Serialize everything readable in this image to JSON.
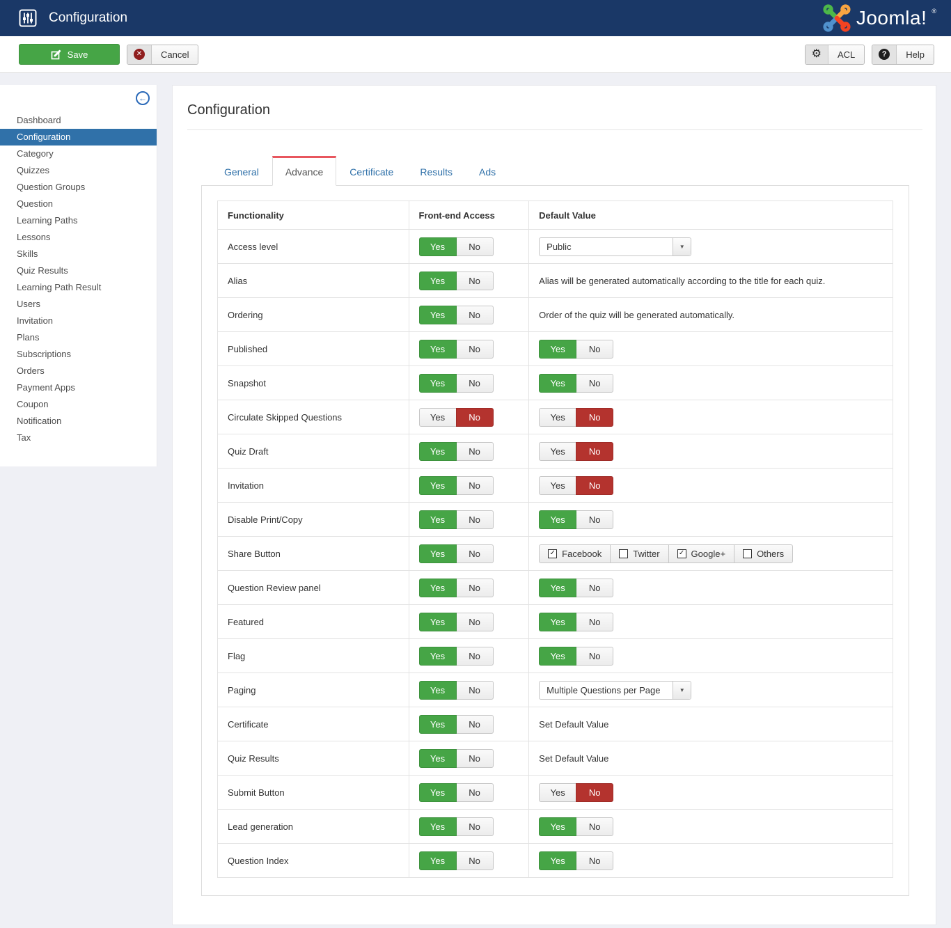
{
  "labels": {
    "yes": "Yes",
    "no": "No"
  },
  "header": {
    "title": "Configuration",
    "logo_text": "Joomla!",
    "logo_reg": "®"
  },
  "toolbar": {
    "save_label": "Save",
    "cancel_label": "Cancel",
    "acl_label": "ACL",
    "help_label": "Help"
  },
  "sidebar": {
    "items": [
      {
        "label": "Dashboard",
        "active": false
      },
      {
        "label": "Configuration",
        "active": true
      },
      {
        "label": "Category",
        "active": false
      },
      {
        "label": "Quizzes",
        "active": false
      },
      {
        "label": "Question Groups",
        "active": false
      },
      {
        "label": "Question",
        "active": false
      },
      {
        "label": "Learning Paths",
        "active": false
      },
      {
        "label": "Lessons",
        "active": false
      },
      {
        "label": "Skills",
        "active": false
      },
      {
        "label": "Quiz Results",
        "active": false
      },
      {
        "label": "Learning Path Result",
        "active": false
      },
      {
        "label": "Users",
        "active": false
      },
      {
        "label": "Invitation",
        "active": false
      },
      {
        "label": "Plans",
        "active": false
      },
      {
        "label": "Subscriptions",
        "active": false
      },
      {
        "label": "Orders",
        "active": false
      },
      {
        "label": "Payment Apps",
        "active": false
      },
      {
        "label": "Coupon",
        "active": false
      },
      {
        "label": "Notification",
        "active": false
      },
      {
        "label": "Tax",
        "active": false
      }
    ]
  },
  "main": {
    "title": "Configuration",
    "tabs": [
      {
        "label": "General",
        "active": false
      },
      {
        "label": "Advance",
        "active": true
      },
      {
        "label": "Certificate",
        "active": false
      },
      {
        "label": "Results",
        "active": false
      },
      {
        "label": "Ads",
        "active": false
      }
    ],
    "table": {
      "headers": [
        "Functionality",
        "Front-end Access",
        "Default Value"
      ],
      "rows": [
        {
          "functionality": "Access level",
          "frontend_access": "yes",
          "default": {
            "type": "select",
            "value": "Public"
          }
        },
        {
          "functionality": "Alias",
          "frontend_access": "yes",
          "default": {
            "type": "text",
            "value": "Alias will be generated automatically according to the title for each quiz."
          }
        },
        {
          "functionality": "Ordering",
          "frontend_access": "yes",
          "default": {
            "type": "text",
            "value": "Order of the quiz will be generated automatically."
          }
        },
        {
          "functionality": "Published",
          "frontend_access": "yes",
          "default": {
            "type": "toggle",
            "value": "yes"
          }
        },
        {
          "functionality": "Snapshot",
          "frontend_access": "yes",
          "default": {
            "type": "toggle",
            "value": "yes"
          }
        },
        {
          "functionality": "Circulate Skipped Questions",
          "frontend_access": "no",
          "default": {
            "type": "toggle",
            "value": "no"
          }
        },
        {
          "functionality": "Quiz Draft",
          "frontend_access": "yes",
          "default": {
            "type": "toggle",
            "value": "no"
          }
        },
        {
          "functionality": "Invitation",
          "frontend_access": "yes",
          "default": {
            "type": "toggle",
            "value": "no"
          }
        },
        {
          "functionality": "Disable Print/Copy",
          "frontend_access": "yes",
          "default": {
            "type": "toggle",
            "value": "yes"
          }
        },
        {
          "functionality": "Share Button",
          "frontend_access": "yes",
          "default": {
            "type": "checkboxes",
            "options": [
              {
                "label": "Facebook",
                "checked": true
              },
              {
                "label": "Twitter",
                "checked": false
              },
              {
                "label": "Google+",
                "checked": true
              },
              {
                "label": "Others",
                "checked": false
              }
            ]
          }
        },
        {
          "functionality": "Question Review panel",
          "frontend_access": "yes",
          "default": {
            "type": "toggle",
            "value": "yes"
          }
        },
        {
          "functionality": "Featured",
          "frontend_access": "yes",
          "default": {
            "type": "toggle",
            "value": "yes"
          }
        },
        {
          "functionality": "Flag",
          "frontend_access": "yes",
          "default": {
            "type": "toggle",
            "value": "yes"
          }
        },
        {
          "functionality": "Paging",
          "frontend_access": "yes",
          "default": {
            "type": "select",
            "value": "Multiple Questions per Page"
          }
        },
        {
          "functionality": "Certificate",
          "frontend_access": "yes",
          "default": {
            "type": "text",
            "value": "Set Default Value",
            "clickable": true
          }
        },
        {
          "functionality": "Quiz Results",
          "frontend_access": "yes",
          "default": {
            "type": "text",
            "value": "Set Default Value",
            "clickable": true
          }
        },
        {
          "functionality": "Submit Button",
          "frontend_access": "yes",
          "default": {
            "type": "toggle",
            "value": "no"
          }
        },
        {
          "functionality": "Lead generation",
          "frontend_access": "yes",
          "default": {
            "type": "toggle",
            "value": "yes"
          }
        },
        {
          "functionality": "Question Index",
          "frontend_access": "yes",
          "default": {
            "type": "toggle",
            "value": "yes"
          }
        }
      ]
    }
  },
  "colors": {
    "topbar": "#1a3867",
    "accent_blue": "#3071a9",
    "tab_active_red": "#e8565e",
    "toggle_green": "#46a546",
    "toggle_red": "#b4332e",
    "page_bg": "#eff0f5"
  }
}
